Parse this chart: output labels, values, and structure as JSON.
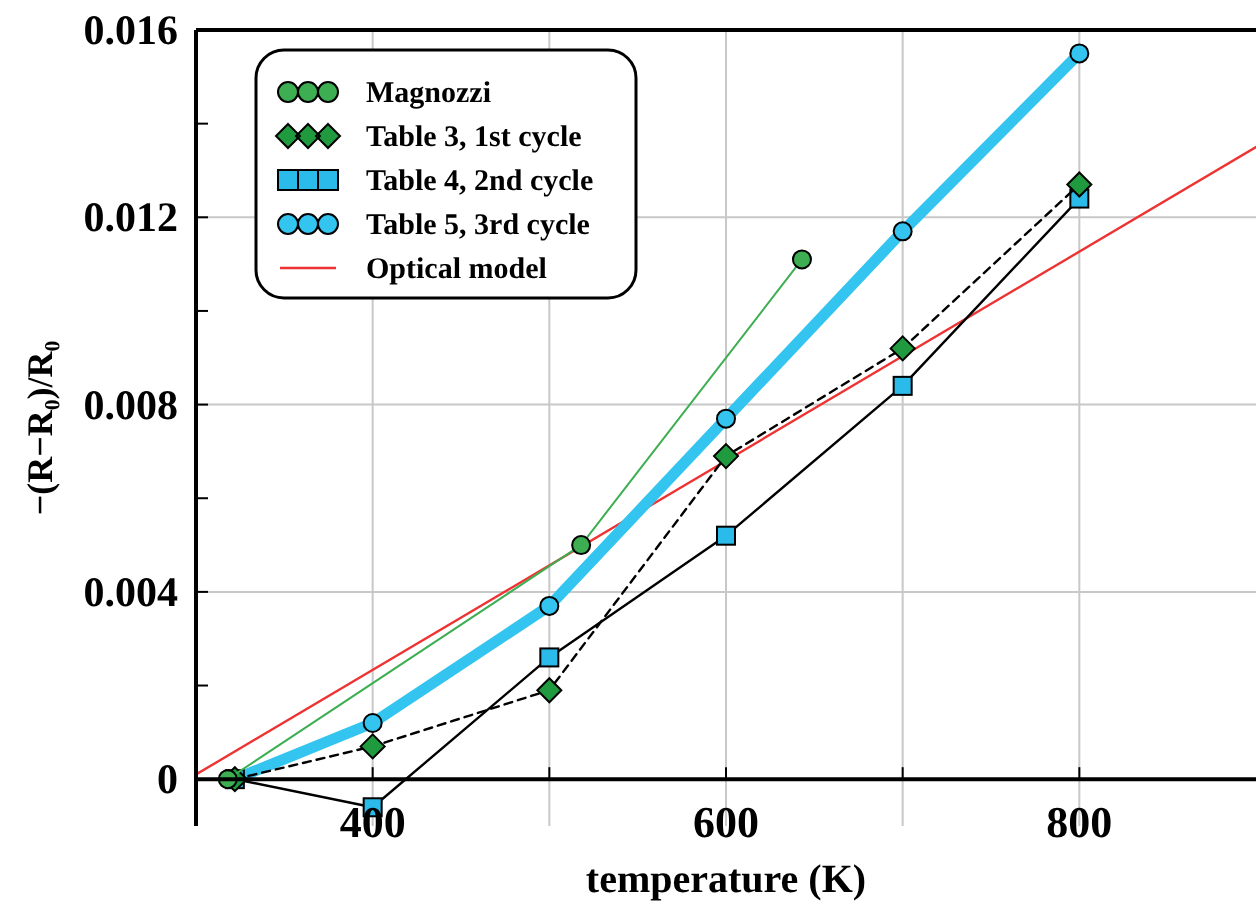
{
  "chart_data": {
    "type": "line",
    "xlabel": "temperature (K)",
    "ylabel": "−(R−R₀)/R₀",
    "xlim": [
      300,
      900
    ],
    "ylim": [
      -0.001,
      0.016
    ],
    "xticks": [
      400,
      {
        "value": 500,
        "label": null
      },
      600,
      {
        "value": 700,
        "label": null
      },
      800
    ],
    "yticks": [
      0,
      {
        "value": 0.002,
        "label": null
      },
      0.004,
      {
        "value": 0.006,
        "label": null
      },
      0.008,
      {
        "value": 0.01,
        "label": null
      },
      0.012,
      {
        "value": 0.014,
        "label": null
      },
      0.016
    ],
    "grid": true,
    "legend": "top left",
    "series": [
      {
        "name": "Magnozzi",
        "color": "#3dae52",
        "marker": "circle",
        "x": [
          318,
          518,
          643
        ],
        "values": [
          0,
          0.005,
          0.0111
        ]
      },
      {
        "name": "Table 3, 1st cycle",
        "color": "#1f9a3e",
        "marker": "diamond",
        "line_style": "dashed",
        "x": [
          322,
          400,
          500,
          600,
          700,
          800
        ],
        "values": [
          0,
          0.0007,
          0.0019,
          0.0069,
          0.0092,
          0.0127
        ]
      },
      {
        "name": "Table 4, 2nd cycle",
        "color": "#2bbbea",
        "marker": "square",
        "line_style": "solid",
        "x": [
          322,
          400,
          500,
          600,
          700,
          800
        ],
        "values": [
          0,
          -0.0006,
          0.0026,
          0.0052,
          0.0084,
          0.0124
        ]
      },
      {
        "name": "Table 5, 3rd cycle",
        "color": "#33c4f0",
        "marker": "circle",
        "x": [
          322,
          400,
          500,
          600,
          700,
          800
        ],
        "values": [
          0,
          0.0012,
          0.0037,
          0.0077,
          0.0117,
          0.0155
        ]
      },
      {
        "name": "Optical model",
        "color": "#ee3333",
        "marker": "none",
        "x": [
          300,
          900
        ],
        "values": [
          0.0001,
          0.0135
        ]
      }
    ]
  }
}
